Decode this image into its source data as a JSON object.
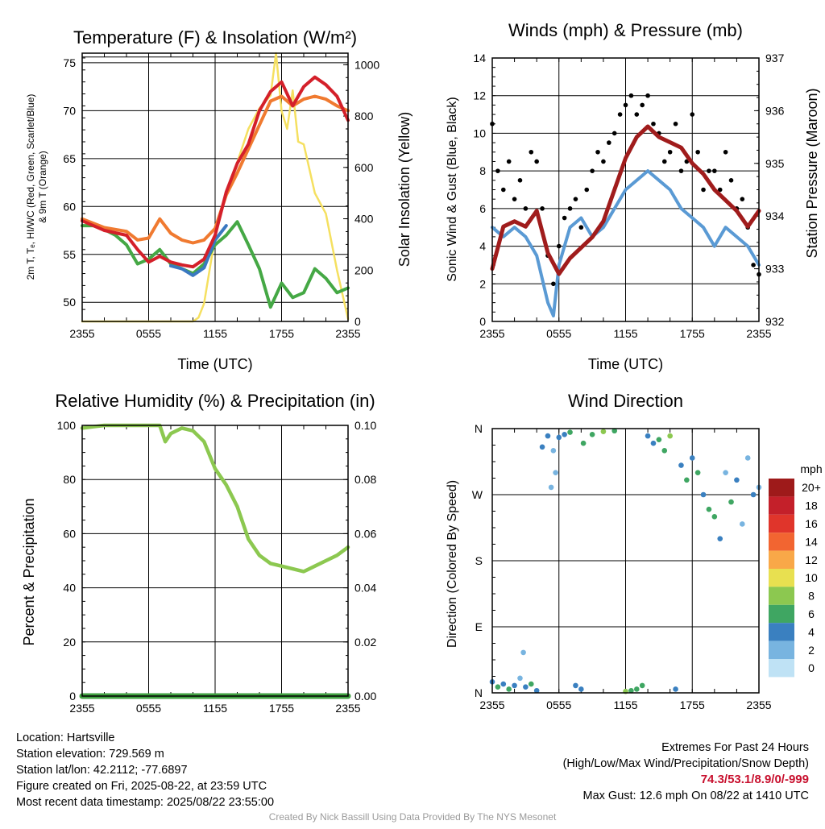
{
  "panels": {
    "temp": {
      "title": "Temperature (F) & Insolation (W/m²)",
      "ylabel_left": [
        "2m T, Tₑ, HI/WC (Red, Green, Scarlet/Blue)",
        "& 9m T (Orange)"
      ],
      "ylabel_right": "Solar Insolation (Yellow)",
      "xlabel": "Time (UTC)"
    },
    "wind": {
      "title": "Winds (mph) & Pressure (mb)",
      "ylabel_left": "Sonic Wind & Gust (Blue, Black)",
      "ylabel_right": "Station Pressure (Maroon)",
      "xlabel": "Time (UTC)"
    },
    "rh": {
      "title": "Relative Humidity (%) & Precipitation (in)",
      "ylabel_left": "Percent & Precipitation"
    },
    "dir": {
      "title": "Wind Direction",
      "ylabel_left": "Direction (Colored By Speed)",
      "colorbar_title": "mph",
      "colorbar_labels": [
        "20+",
        "18",
        "16",
        "14",
        "12",
        "10",
        "8",
        "6",
        "4",
        "2",
        "0"
      ],
      "colorbar_colors": [
        "#9e1a1a",
        "#c4202a",
        "#e0352b",
        "#f26531",
        "#f9a848",
        "#e8e050",
        "#8cc850",
        "#3fa662",
        "#3a80c0",
        "#78b4e0",
        "#bfe2f5"
      ]
    }
  },
  "chart_data": [
    {
      "type": "line",
      "title": "Temperature (F) & Insolation (W/m²)",
      "xlabel": "Time (UTC)",
      "x_ticks": [
        "2355",
        "0555",
        "1155",
        "1755",
        "2355"
      ],
      "xlim_hours": [
        0,
        24
      ],
      "ylim": [
        48,
        76
      ],
      "y_ticks": [
        50,
        55,
        60,
        65,
        70,
        75
      ],
      "y2lim": [
        0,
        1045
      ],
      "y2_ticks": [
        0,
        200,
        400,
        600,
        800,
        1000
      ],
      "series": [
        {
          "name": "2m T",
          "color": "#d4202a",
          "axis": "left",
          "x": [
            0,
            2,
            4,
            5,
            6,
            7,
            8,
            9,
            10,
            11,
            12,
            13,
            14,
            15,
            16,
            17,
            18,
            19,
            20,
            21,
            22,
            23,
            24
          ],
          "y": [
            58.5,
            57.5,
            57,
            55.5,
            54.2,
            54.8,
            54.2,
            53.9,
            53.7,
            54.5,
            57,
            61.5,
            64.5,
            66.5,
            70,
            72,
            73,
            70.5,
            72.5,
            73.5,
            72.7,
            71.5,
            69
          ]
        },
        {
          "name": "9m T",
          "color": "#f07a30",
          "axis": "left",
          "x": [
            0,
            2,
            4,
            5,
            6,
            7,
            8,
            9,
            10,
            11,
            12,
            13,
            14,
            15,
            16,
            17,
            18,
            19,
            20,
            21,
            22,
            23,
            24
          ],
          "y": [
            58.7,
            57.8,
            57.4,
            56.5,
            56.7,
            58.7,
            57.2,
            56.5,
            56.2,
            56.5,
            57.7,
            61.2,
            63.5,
            66,
            68.5,
            71,
            71.5,
            70.5,
            71.2,
            71.5,
            71.2,
            70.5,
            70
          ]
        },
        {
          "name": "HI/WC",
          "color": "#3a78c0",
          "axis": "left",
          "x": [
            8,
            9,
            10,
            11,
            12,
            13
          ],
          "y": [
            53.8,
            53.5,
            52.8,
            53.6,
            56.5,
            58
          ]
        },
        {
          "name": "Td",
          "color": "#45a845",
          "axis": "left",
          "x": [
            0,
            1,
            2,
            3,
            4,
            5,
            6,
            7,
            8,
            9,
            10,
            11,
            12,
            13,
            14,
            15,
            16,
            17,
            18,
            19,
            20,
            21,
            22,
            23,
            24
          ],
          "y": [
            58,
            58,
            57.6,
            57,
            56,
            54,
            54.5,
            55.5,
            54,
            53.5,
            53,
            54,
            56,
            57,
            58.4,
            56,
            53.5,
            49.5,
            52,
            50.5,
            51,
            53.5,
            52.5,
            51,
            51.5
          ]
        },
        {
          "name": "Solar Insolation",
          "color": "#f5e060",
          "axis": "right",
          "x": [
            0,
            10,
            10.5,
            11,
            11.5,
            12,
            13,
            14,
            15,
            16,
            17,
            17.5,
            18,
            18.5,
            19,
            19.5,
            20,
            21,
            22,
            23,
            24
          ],
          "y": [
            0,
            0,
            15,
            70,
            200,
            330,
            500,
            620,
            750,
            830,
            880,
            1045,
            820,
            750,
            900,
            700,
            690,
            500,
            420,
            200,
            10
          ]
        }
      ]
    },
    {
      "type": "line",
      "title": "Winds (mph) & Pressure (mb)",
      "xlabel": "Time (UTC)",
      "x_ticks": [
        "2355",
        "0555",
        "1155",
        "1755",
        "2355"
      ],
      "xlim_hours": [
        0,
        24
      ],
      "ylim": [
        0,
        14
      ],
      "y_ticks": [
        0,
        2,
        4,
        6,
        8,
        10,
        12,
        14
      ],
      "y2lim": [
        932,
        937
      ],
      "y2_ticks": [
        932,
        933,
        934,
        935,
        936,
        937
      ],
      "series": [
        {
          "name": "Sonic Wind",
          "color": "#5a9ad4",
          "axis": "left",
          "x": [
            0,
            1,
            2,
            3,
            4,
            5,
            5.5,
            6,
            7,
            8,
            9,
            10,
            11,
            12,
            13,
            14,
            15,
            16,
            17,
            18,
            19,
            20,
            21,
            22,
            23,
            24
          ],
          "y": [
            5,
            4.5,
            5,
            4.5,
            3.5,
            1,
            0.3,
            3,
            5,
            5.5,
            4.5,
            5,
            6,
            7,
            7.5,
            8,
            7.5,
            7,
            6,
            5.5,
            5,
            4,
            5,
            4.5,
            4,
            3
          ]
        },
        {
          "name": "Gust",
          "color": "#000000",
          "axis": "left",
          "type": "scatter",
          "x": [
            0,
            0.5,
            1,
            1.5,
            2,
            2.5,
            3,
            3.5,
            4,
            4.5,
            5,
            5.5,
            6,
            6.5,
            7,
            7.5,
            8,
            8.5,
            9,
            9.5,
            10,
            10.5,
            11,
            11.5,
            12,
            12.5,
            13,
            13.5,
            14,
            14.5,
            15,
            15.5,
            16,
            16.5,
            17,
            17.5,
            18,
            18.5,
            19,
            19.5,
            20,
            20.5,
            21,
            21.5,
            22,
            22.5,
            23,
            23.5,
            24
          ],
          "y": [
            10.5,
            8,
            7,
            8.5,
            6.5,
            7.5,
            6,
            9,
            8.5,
            6,
            3.5,
            2,
            4,
            5.5,
            6,
            6.5,
            5,
            7,
            8,
            9,
            8.5,
            9.5,
            10,
            11,
            11.5,
            12,
            11,
            11.5,
            12,
            10.5,
            10,
            8.5,
            9,
            10.5,
            8,
            8.5,
            11,
            9,
            7,
            8,
            8,
            7,
            9,
            7.5,
            6,
            6.5,
            5,
            3,
            2.5
          ]
        },
        {
          "name": "Station Pressure",
          "color": "#a01c1c",
          "axis": "right",
          "x": [
            0,
            1,
            2,
            3,
            4,
            5,
            6,
            7,
            8,
            9,
            10,
            11,
            12,
            13,
            14,
            15,
            16,
            17,
            18,
            19,
            20,
            21,
            22,
            23,
            24
          ],
          "y": [
            933.0,
            933.8,
            933.9,
            933.8,
            934.1,
            933.3,
            932.9,
            933.2,
            933.4,
            933.6,
            933.9,
            934.5,
            935.1,
            935.5,
            935.7,
            935.5,
            935.4,
            935.3,
            935.0,
            934.8,
            934.5,
            934.3,
            934.1,
            933.8,
            934.1
          ]
        }
      ]
    },
    {
      "type": "line",
      "title": "Relative Humidity (%) & Precipitation (in)",
      "x_ticks": [
        "2355",
        "0555",
        "1155",
        "1755",
        "2355"
      ],
      "xlim_hours": [
        0,
        24
      ],
      "ylim": [
        0,
        100
      ],
      "y_ticks": [
        0,
        20,
        40,
        60,
        80,
        100
      ],
      "y2lim": [
        0,
        0.1
      ],
      "y2_ticks": [
        "0.00",
        "0.02",
        "0.04",
        "0.06",
        "0.08",
        "0.10"
      ],
      "series": [
        {
          "name": "RH",
          "color": "#8cc850",
          "axis": "left",
          "x": [
            0,
            1,
            2,
            3,
            4,
            5,
            6,
            7,
            7.5,
            8,
            9,
            10,
            11,
            12,
            13,
            14,
            15,
            16,
            17,
            18,
            19,
            20,
            21,
            22,
            23,
            24
          ],
          "y": [
            99,
            99.5,
            100,
            100,
            100,
            100,
            100,
            100,
            94,
            97,
            99,
            98,
            94,
            84,
            78,
            70,
            58,
            52,
            49,
            48,
            47,
            46,
            48,
            50,
            52,
            55
          ]
        },
        {
          "name": "Precipitation",
          "color": "#3fa040",
          "axis": "right",
          "x": [
            0,
            24
          ],
          "y": [
            0,
            0
          ]
        }
      ]
    },
    {
      "type": "scatter",
      "title": "Wind Direction",
      "ylabel": "Direction (Colored By Speed)",
      "x_ticks": [
        "2355",
        "0555",
        "1155",
        "1755",
        "2355"
      ],
      "xlim_hours": [
        0,
        24
      ],
      "y_categories": [
        "N",
        "E",
        "S",
        "W",
        "N"
      ],
      "ylim_deg": [
        0,
        360
      ],
      "colorbar": {
        "title": "mph",
        "levels": [
          "0",
          "2",
          "4",
          "6",
          "8",
          "10",
          "12",
          "14",
          "16",
          "18",
          "20+"
        ]
      },
      "points": [
        [
          0,
          15,
          3
        ],
        [
          0.5,
          8,
          6
        ],
        [
          1,
          12,
          4
        ],
        [
          1.5,
          5,
          6
        ],
        [
          2,
          10,
          3
        ],
        [
          2.5,
          20,
          2
        ],
        [
          2.8,
          55,
          2
        ],
        [
          3,
          8,
          4
        ],
        [
          3.5,
          12,
          5
        ],
        [
          4,
          3,
          3
        ],
        [
          4.5,
          335,
          3
        ],
        [
          5,
          350,
          4
        ],
        [
          5.3,
          280,
          1
        ],
        [
          5.5,
          330,
          2
        ],
        [
          5.7,
          300,
          2
        ],
        [
          6,
          348,
          4
        ],
        [
          6.5,
          352,
          3
        ],
        [
          7,
          355,
          5
        ],
        [
          7.5,
          10,
          4
        ],
        [
          8,
          5,
          3
        ],
        [
          8.2,
          340,
          6
        ],
        [
          9,
          352,
          6
        ],
        [
          10,
          356,
          7
        ],
        [
          11,
          357,
          6
        ],
        [
          12,
          2,
          7
        ],
        [
          12.5,
          3,
          6
        ],
        [
          13,
          5,
          5
        ],
        [
          13.5,
          10,
          6
        ],
        [
          14,
          350,
          3
        ],
        [
          14.5,
          340,
          4
        ],
        [
          15,
          345,
          6
        ],
        [
          15.5,
          330,
          5
        ],
        [
          16,
          350,
          7
        ],
        [
          16.5,
          5,
          4
        ],
        [
          17,
          310,
          4
        ],
        [
          17.5,
          290,
          5
        ],
        [
          18,
          320,
          3
        ],
        [
          18.5,
          300,
          6
        ],
        [
          19,
          270,
          4
        ],
        [
          19.5,
          250,
          6
        ],
        [
          20,
          240,
          5
        ],
        [
          20.5,
          210,
          3
        ],
        [
          21,
          300,
          2
        ],
        [
          21.5,
          260,
          5
        ],
        [
          22,
          290,
          3
        ],
        [
          22.5,
          230,
          2
        ],
        [
          23,
          320,
          1
        ],
        [
          23.5,
          270,
          3
        ],
        [
          24,
          280,
          2
        ]
      ]
    }
  ],
  "axes": {
    "temp_y_left": [
      "50",
      "55",
      "60",
      "65",
      "70",
      "75"
    ],
    "temp_y_right": [
      "0",
      "200",
      "400",
      "600",
      "800",
      "1000"
    ],
    "wind_y_left": [
      "0",
      "2",
      "4",
      "6",
      "8",
      "10",
      "12",
      "14"
    ],
    "wind_y_right": [
      "932",
      "933",
      "934",
      "935",
      "936",
      "937"
    ],
    "rh_y_left": [
      "0",
      "20",
      "40",
      "60",
      "80",
      "100"
    ],
    "rh_y_right": [
      "0.00",
      "0.02",
      "0.04",
      "0.06",
      "0.08",
      "0.10"
    ],
    "dir_y": [
      "N",
      "E",
      "S",
      "W",
      "N"
    ],
    "x_ticks": [
      "2355",
      "0555",
      "1155",
      "1755",
      "2355"
    ]
  },
  "info": {
    "location": "Location: Hartsville",
    "elevation": "Station elevation: 729.569 m",
    "latlon": "Station lat/lon: 42.2112; -77.6897",
    "created": "Figure created on Fri, 2025-08-22, at 23:59 UTC",
    "recent": "Most recent data timestamp: 2025/08/22 23:55:00"
  },
  "extremes": {
    "heading": "Extremes For Past 24 Hours",
    "subheading": "(High/Low/Max Wind/Precipitation/Snow Depth)",
    "values": "74.3/53.1/8.9/0/-999",
    "gust": "Max Gust: 12.6 mph On 08/22 at 1410 UTC"
  },
  "credit": "Created By Nick Bassill Using Data Provided By The NYS Mesonet"
}
